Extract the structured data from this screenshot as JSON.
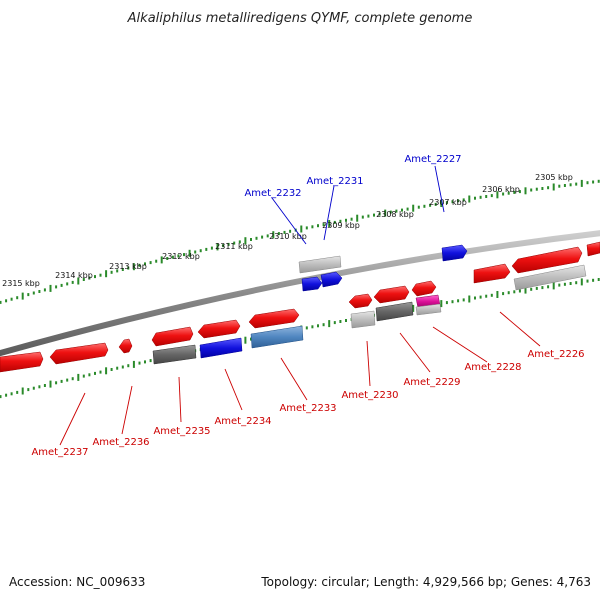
{
  "title": "Alkaliphilus metalliredigens QYMF, complete genome",
  "footer": {
    "accession": "Accession: NC_009633",
    "summary": "Topology: circular; Length: 4,929,566 bp; Genes: 4,763"
  },
  "colors": {
    "red": "#ee1111",
    "gray": "#bbbbbb",
    "dark_gray": "#666666",
    "blue": "#1111dd",
    "steel_blue": "#4f86c0",
    "magenta": "#dd1199",
    "tick_green": "#2a8a2a",
    "label_blue": "#0000cc",
    "label_red": "#cc0000"
  },
  "scale_labels": [
    "2305 kbp",
    "2306 kbp",
    "2307 kbp",
    "2308 kbp",
    "2309 kbp",
    "2310 kbp",
    "2311 kbp",
    "2312 kbp",
    "2313 kbp",
    "2314 kbp",
    "2315 kbp"
  ],
  "gene_labels_top": [
    "Amet_2227",
    "Amet_2231",
    "Amet_2232"
  ],
  "gene_labels_bottom": [
    "Amet_2226",
    "Amet_2228",
    "Amet_2229",
    "Amet_2230",
    "Amet_2233",
    "Amet_2234",
    "Amet_2235",
    "Amet_2236",
    "Amet_2237"
  ]
}
